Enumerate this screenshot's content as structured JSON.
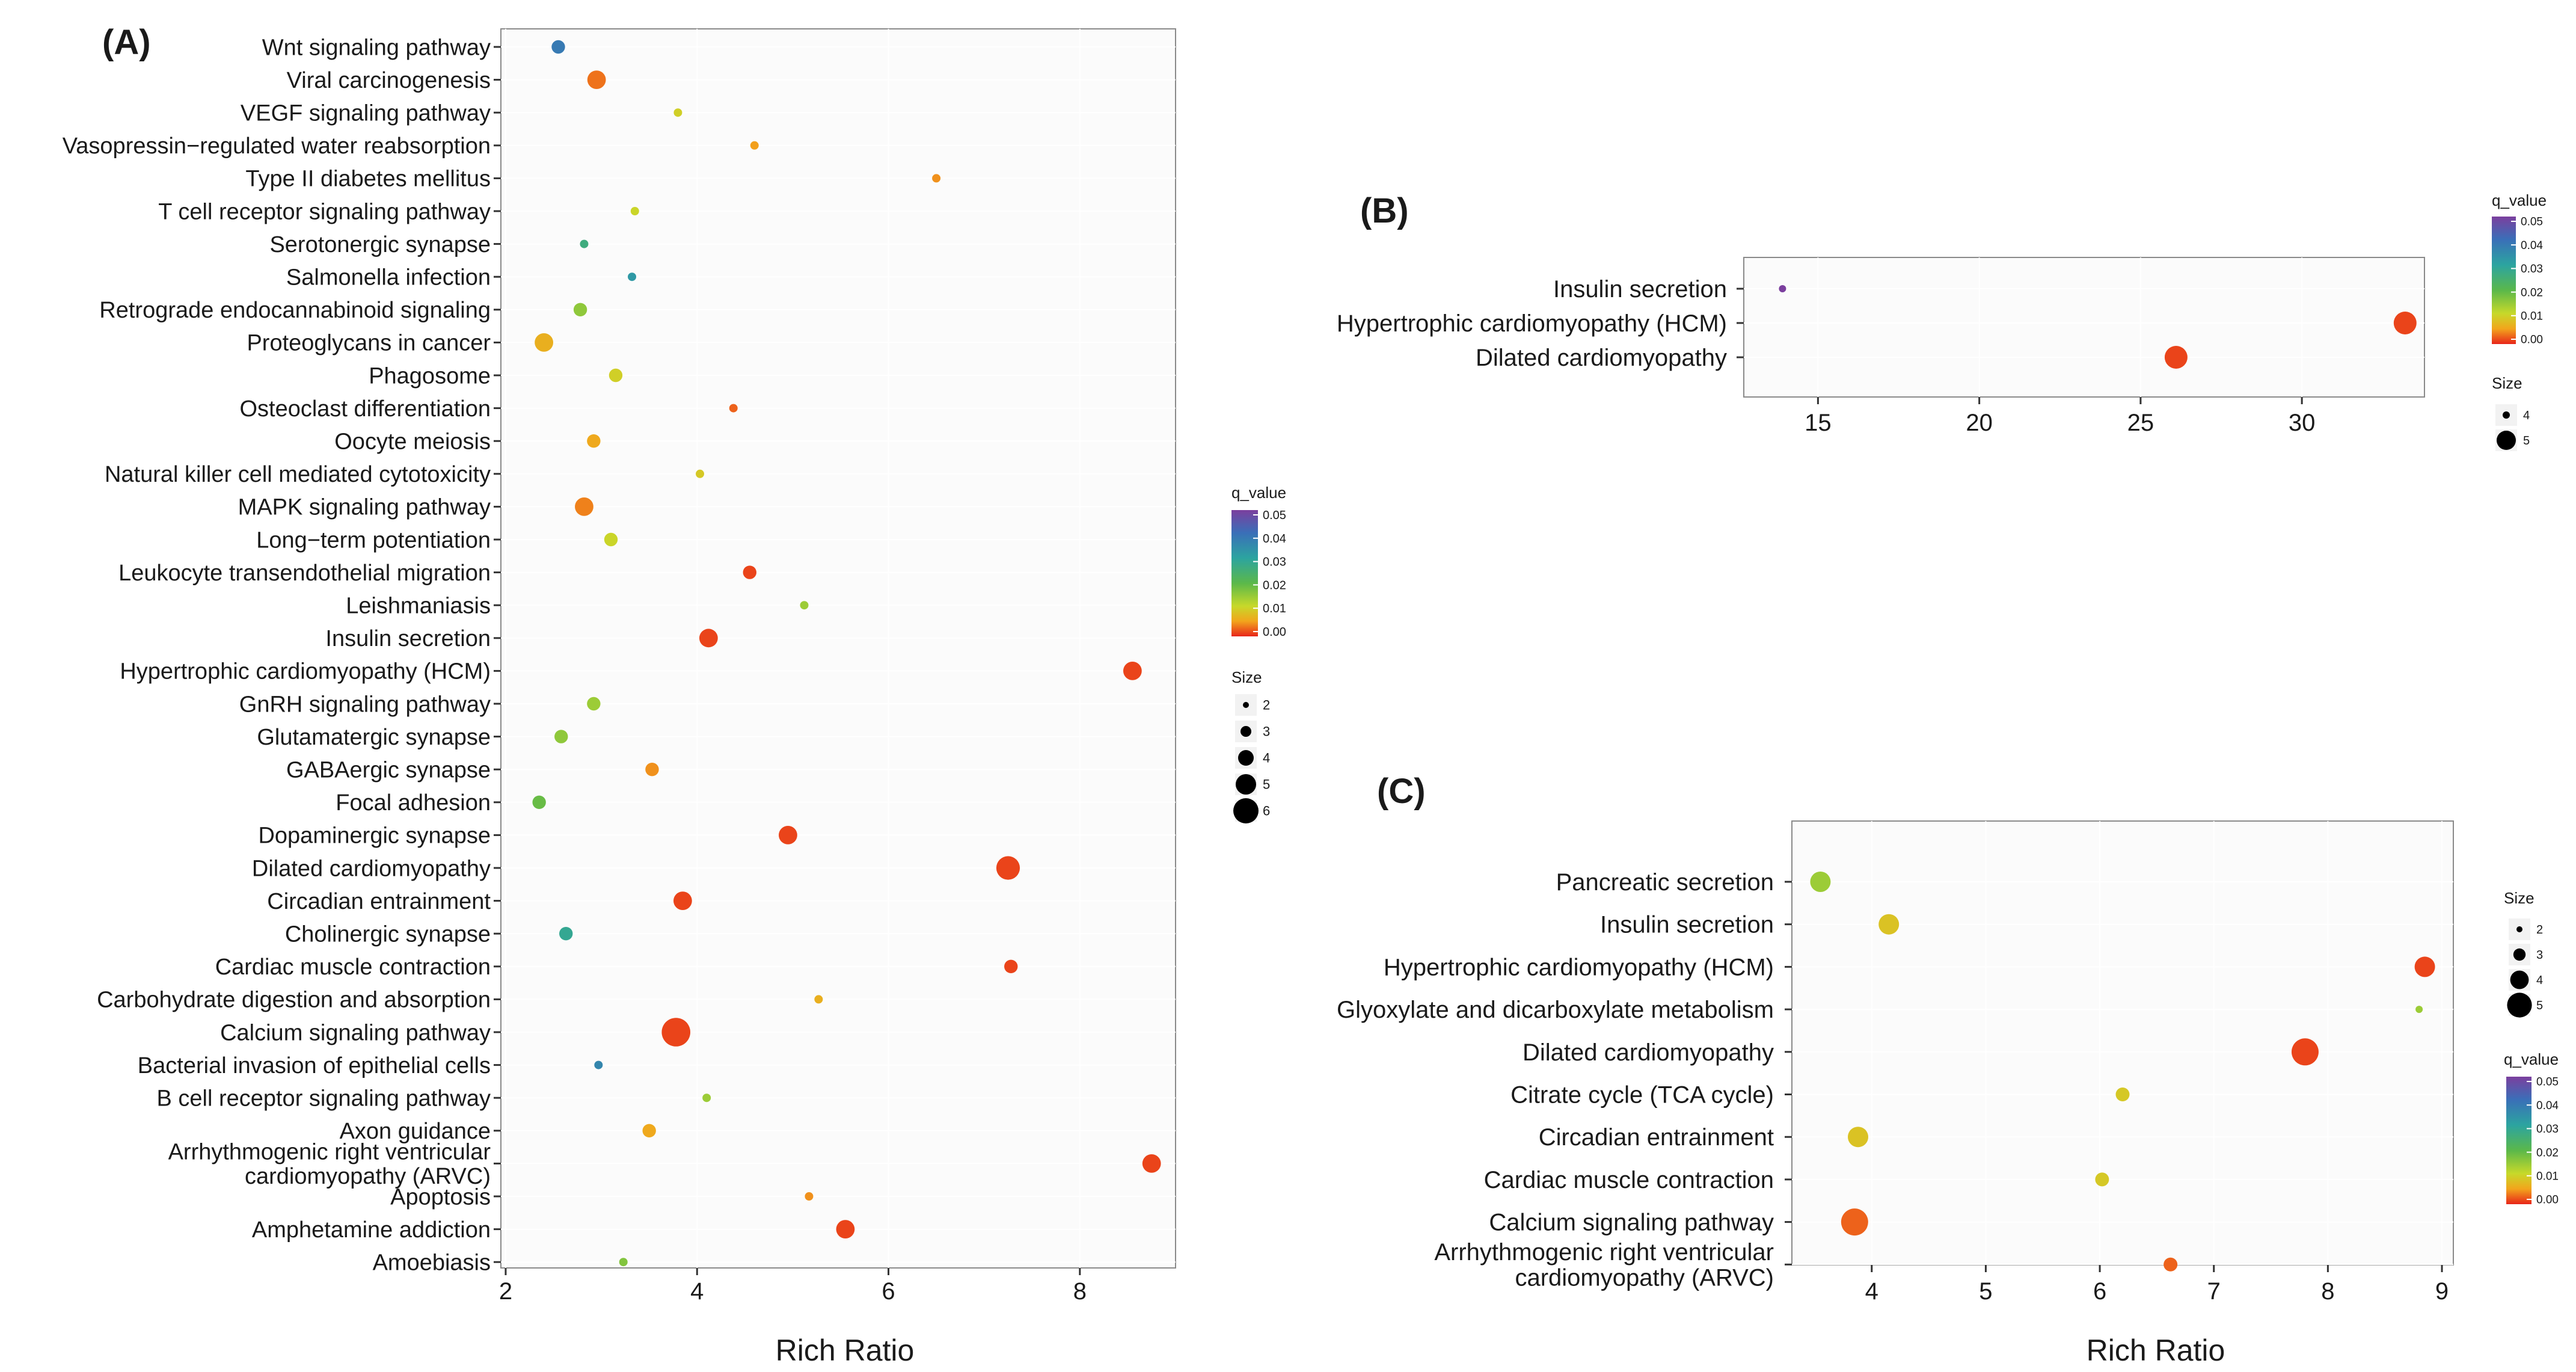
{
  "chart_data": [
    {
      "type": "scatter",
      "panel_label": "(A)",
      "xlabel": "Rich Ratio",
      "xticks": [
        2,
        4,
        6,
        8
      ],
      "xlim": [
        1.95,
        9.0
      ],
      "categories": [
        "Wnt signaling pathway",
        "Viral carcinogenesis",
        "VEGF signaling pathway",
        "Vasopressin−regulated water reabsorption",
        "Type II diabetes mellitus",
        "T cell receptor signaling pathway",
        "Serotonergic synapse",
        "Salmonella infection",
        "Retrograde endocannabinoid signaling",
        "Proteoglycans in cancer",
        "Phagosome",
        "Osteoclast differentiation",
        "Oocyte meiosis",
        "Natural killer cell mediated cytotoxicity",
        "MAPK signaling pathway",
        "Long−term potentiation",
        "Leukocyte transendothelial migration",
        "Leishmaniasis",
        "Insulin secretion",
        "Hypertrophic cardiomyopathy (HCM)",
        "GnRH signaling pathway",
        "Glutamatergic synapse",
        "GABAergic synapse",
        "Focal adhesion",
        "Dopaminergic synapse",
        "Dilated cardiomyopathy",
        "Circadian entrainment",
        "Cholinergic synapse",
        "Cardiac muscle contraction",
        "Carbohydrate digestion and absorption",
        "Calcium signaling pathway",
        "Bacterial invasion of epithelial cells",
        "B cell receptor signaling pathway",
        "Axon guidance",
        "Arrhythmogenic right ventricular cardiomyopathy (ARVC)",
        "Apoptosis",
        "Amphetamine addiction",
        "Amoebiasis"
      ],
      "display_labels": [
        [
          "Wnt signaling pathway"
        ],
        [
          "Viral carcinogenesis"
        ],
        [
          "VEGF signaling pathway"
        ],
        [
          "Vasopressin−regulated water reabsorption"
        ],
        [
          "Type II diabetes mellitus"
        ],
        [
          "T cell receptor signaling pathway"
        ],
        [
          "Serotonergic synapse"
        ],
        [
          "Salmonella infection"
        ],
        [
          "Retrograde endocannabinoid signaling"
        ],
        [
          "Proteoglycans in cancer"
        ],
        [
          "Phagosome"
        ],
        [
          "Osteoclast differentiation"
        ],
        [
          "Oocyte meiosis"
        ],
        [
          "Natural killer cell mediated cytotoxicity"
        ],
        [
          "MAPK signaling pathway"
        ],
        [
          "Long−term potentiation"
        ],
        [
          "Leukocyte transendothelial migration"
        ],
        [
          "Leishmaniasis"
        ],
        [
          "Insulin secretion"
        ],
        [
          "Hypertrophic cardiomyopathy (HCM)"
        ],
        [
          "GnRH signaling pathway"
        ],
        [
          "Glutamatergic synapse"
        ],
        [
          "GABAergic synapse"
        ],
        [
          "Focal adhesion"
        ],
        [
          "Dopaminergic synapse"
        ],
        [
          "Dilated cardiomyopathy"
        ],
        [
          "Circadian entrainment"
        ],
        [
          "Cholinergic synapse"
        ],
        [
          "Cardiac muscle contraction"
        ],
        [
          "Carbohydrate digestion and absorption"
        ],
        [
          "Calcium signaling pathway"
        ],
        [
          "Bacterial invasion of epithelial cells"
        ],
        [
          "B cell receptor signaling pathway"
        ],
        [
          "Axon guidance"
        ],
        [
          "Arrhythmogenic right ventricular",
          "cardiomyopathy (ARVC)"
        ],
        [
          "Apoptosis"
        ],
        [
          "Amphetamine addiction"
        ],
        [
          "Amoebiasis"
        ]
      ],
      "rich_ratio": [
        2.55,
        2.95,
        3.8,
        4.6,
        6.5,
        3.35,
        2.82,
        3.32,
        2.78,
        2.4,
        3.15,
        4.38,
        2.92,
        4.03,
        2.82,
        3.1,
        4.55,
        5.12,
        4.12,
        8.55,
        2.92,
        2.58,
        3.53,
        2.35,
        4.95,
        7.25,
        3.85,
        2.63,
        7.28,
        5.27,
        3.78,
        2.97,
        4.1,
        3.5,
        8.75,
        5.17,
        5.55,
        3.23
      ],
      "q_value": [
        0.04,
        0.005,
        0.015,
        0.008,
        0.007,
        0.016,
        0.03,
        0.035,
        0.021,
        0.01,
        0.015,
        0.004,
        0.009,
        0.014,
        0.006,
        0.016,
        0.002,
        0.02,
        0.002,
        0.002,
        0.02,
        0.021,
        0.007,
        0.024,
        0.002,
        0.002,
        0.002,
        0.032,
        0.002,
        0.01,
        0.002,
        0.038,
        0.02,
        0.009,
        0.002,
        0.007,
        0.002,
        0.022
      ],
      "gene_count": [
        3,
        4,
        2,
        2,
        2,
        2,
        2,
        2,
        3,
        4,
        3,
        2,
        3,
        2,
        4,
        3,
        3,
        2,
        4,
        4,
        3,
        3,
        3,
        3,
        4,
        5,
        4,
        3,
        3,
        2,
        6,
        2,
        2,
        3,
        4,
        2,
        4,
        2
      ],
      "legend_color": {
        "title": "q_value",
        "ticks": [
          "0.05",
          "0.04",
          "0.03",
          "0.02",
          "0.01",
          "0.00"
        ]
      },
      "legend_size": {
        "title": "Size",
        "values": [
          2,
          3,
          4,
          5,
          6
        ]
      }
    },
    {
      "type": "scatter",
      "panel_label": "(B)",
      "xlabel": "",
      "xticks": [
        15,
        20,
        25,
        30
      ],
      "xlim": [
        12.7,
        33.8
      ],
      "categories": [
        "Insulin secretion",
        "Hypertrophic cardiomyopathy (HCM)",
        "Dilated cardiomyopathy"
      ],
      "display_labels": [
        [
          "Insulin secretion"
        ],
        [
          "Hypertrophic cardiomyopathy (HCM)"
        ],
        [
          "Dilated cardiomyopathy"
        ]
      ],
      "rich_ratio": [
        13.9,
        33.2,
        26.1
      ],
      "q_value": [
        0.05,
        0.002,
        0.002
      ],
      "gene_count": [
        4,
        5,
        5
      ],
      "legend_color": {
        "title": "q_value",
        "ticks": [
          "0.05",
          "0.04",
          "0.03",
          "0.02",
          "0.01",
          "0.00"
        ]
      },
      "legend_size": {
        "title": "Size",
        "values": [
          4,
          5
        ]
      }
    },
    {
      "type": "scatter",
      "panel_label": "(C)",
      "xlabel": "Rich Ratio",
      "xticks": [
        4,
        5,
        6,
        7,
        8,
        9
      ],
      "xlim": [
        3.3,
        9.1
      ],
      "categories": [
        "Pancreatic secretion",
        "Insulin secretion",
        "Hypertrophic cardiomyopathy (HCM)",
        "Glyoxylate and dicarboxylate metabolism",
        "Dilated cardiomyopathy",
        "Citrate cycle (TCA cycle)",
        "Circadian entrainment",
        "Cardiac muscle contraction",
        "Calcium signaling pathway",
        "Arrhythmogenic right ventricular cardiomyopathy (ARVC)"
      ],
      "display_labels": [
        [
          "Pancreatic secretion"
        ],
        [
          "Insulin secretion"
        ],
        [
          "Hypertrophic cardiomyopathy (HCM)"
        ],
        [
          "Glyoxylate and dicarboxylate metabolism"
        ],
        [
          "Dilated cardiomyopathy"
        ],
        [
          "Citrate cycle (TCA cycle)"
        ],
        [
          "Circadian entrainment"
        ],
        [
          "Cardiac muscle contraction"
        ],
        [
          "Calcium signaling pathway"
        ],
        [
          "Arrhythmogenic right ventricular",
          "cardiomyopathy (ARVC)"
        ]
      ],
      "rich_ratio": [
        3.55,
        4.15,
        8.85,
        8.8,
        7.8,
        6.2,
        3.88,
        6.02,
        3.85,
        6.62
      ],
      "q_value": [
        0.02,
        0.013,
        0.002,
        0.02,
        0.002,
        0.014,
        0.013,
        0.014,
        0.004,
        0.004
      ],
      "gene_count": [
        4,
        4,
        4,
        2,
        5,
        3,
        4,
        3,
        5,
        3
      ],
      "legend_color": {
        "title": "q_value",
        "ticks": [
          "0.05",
          "0.04",
          "0.03",
          "0.02",
          "0.01",
          "0.00"
        ]
      },
      "legend_size": {
        "title": "Size",
        "values": [
          2,
          3,
          4,
          5
        ]
      }
    }
  ],
  "colors": {
    "scale": [
      "#7b3f9e",
      "#3a6fb8",
      "#2ca4a0",
      "#5bb84a",
      "#c7d92a",
      "#f2a51c",
      "#e8251a"
    ],
    "panel_background": "#fbfbfb",
    "panel_border": "#8a8a8a"
  }
}
